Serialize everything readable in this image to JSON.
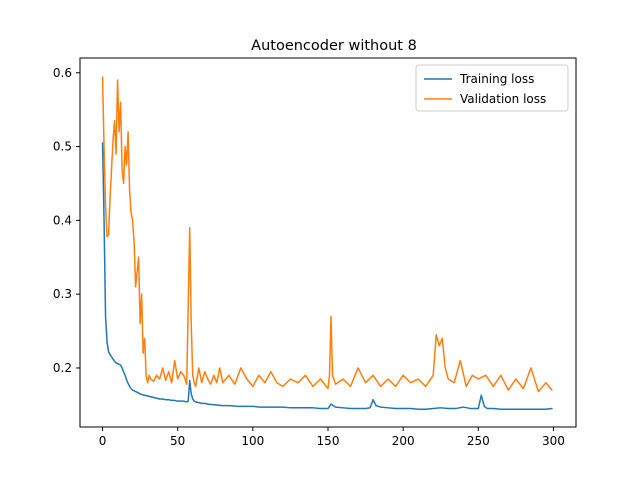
{
  "chart_data": {
    "type": "line",
    "title": "Autoencoder without 8",
    "xlabel": "",
    "ylabel": "",
    "xlim": [
      -15,
      315
    ],
    "ylim": [
      0.12,
      0.62
    ],
    "xticks": [
      0,
      50,
      100,
      150,
      200,
      250,
      300
    ],
    "yticks": [
      0.2,
      0.3,
      0.4,
      0.5,
      0.6
    ],
    "grid": false,
    "legend_position": "top-right",
    "series": [
      {
        "name": "Training loss",
        "color": "#1f77b4",
        "x": [
          0,
          1,
          2,
          3,
          4,
          5,
          6,
          7,
          8,
          9,
          10,
          11,
          12,
          13,
          14,
          15,
          16,
          17,
          18,
          19,
          20,
          22,
          24,
          26,
          28,
          30,
          32,
          34,
          36,
          38,
          40,
          42,
          44,
          46,
          48,
          50,
          52,
          54,
          56,
          57,
          58,
          59,
          60,
          61,
          62,
          64,
          66,
          68,
          70,
          75,
          80,
          85,
          90,
          95,
          100,
          105,
          110,
          115,
          120,
          125,
          130,
          135,
          140,
          145,
          150,
          152,
          155,
          160,
          165,
          170,
          175,
          178,
          180,
          182,
          185,
          190,
          195,
          200,
          205,
          210,
          215,
          220,
          225,
          230,
          235,
          240,
          245,
          250,
          252,
          254,
          256,
          260,
          265,
          270,
          275,
          280,
          285,
          290,
          295,
          299
        ],
        "values": [
          0.505,
          0.4,
          0.27,
          0.235,
          0.222,
          0.218,
          0.215,
          0.212,
          0.209,
          0.207,
          0.206,
          0.205,
          0.204,
          0.2,
          0.195,
          0.19,
          0.184,
          0.179,
          0.175,
          0.172,
          0.17,
          0.168,
          0.166,
          0.164,
          0.163,
          0.162,
          0.161,
          0.16,
          0.159,
          0.158,
          0.158,
          0.157,
          0.157,
          0.156,
          0.156,
          0.155,
          0.155,
          0.155,
          0.154,
          0.155,
          0.183,
          0.165,
          0.158,
          0.155,
          0.154,
          0.153,
          0.152,
          0.152,
          0.151,
          0.15,
          0.149,
          0.149,
          0.148,
          0.148,
          0.148,
          0.147,
          0.147,
          0.147,
          0.147,
          0.146,
          0.146,
          0.146,
          0.146,
          0.145,
          0.145,
          0.151,
          0.147,
          0.146,
          0.145,
          0.145,
          0.145,
          0.146,
          0.157,
          0.149,
          0.147,
          0.146,
          0.145,
          0.145,
          0.145,
          0.144,
          0.144,
          0.145,
          0.146,
          0.145,
          0.145,
          0.147,
          0.145,
          0.145,
          0.163,
          0.148,
          0.145,
          0.145,
          0.144,
          0.144,
          0.144,
          0.144,
          0.144,
          0.144,
          0.144,
          0.145
        ]
      },
      {
        "name": "Validation loss",
        "color": "#ff7f0e",
        "x": [
          0,
          1,
          2,
          3,
          4,
          5,
          6,
          7,
          8,
          9,
          10,
          11,
          12,
          13,
          14,
          15,
          16,
          17,
          18,
          19,
          20,
          21,
          22,
          23,
          24,
          25,
          26,
          27,
          28,
          29,
          30,
          31,
          32,
          34,
          36,
          38,
          40,
          42,
          44,
          46,
          48,
          50,
          52,
          54,
          56,
          58,
          59,
          60,
          61,
          62,
          64,
          66,
          68,
          70,
          72,
          74,
          76,
          78,
          80,
          84,
          88,
          92,
          96,
          100,
          104,
          108,
          112,
          116,
          120,
          125,
          130,
          135,
          140,
          145,
          150,
          151,
          152,
          153,
          155,
          160,
          165,
          170,
          175,
          180,
          185,
          190,
          195,
          200,
          205,
          210,
          215,
          220,
          222,
          224,
          226,
          228,
          230,
          234,
          238,
          242,
          246,
          250,
          255,
          260,
          265,
          270,
          275,
          280,
          285,
          290,
          295,
          299
        ],
        "values": [
          0.594,
          0.5,
          0.42,
          0.378,
          0.38,
          0.43,
          0.47,
          0.51,
          0.535,
          0.49,
          0.59,
          0.52,
          0.56,
          0.47,
          0.45,
          0.5,
          0.475,
          0.52,
          0.44,
          0.41,
          0.4,
          0.37,
          0.31,
          0.33,
          0.35,
          0.26,
          0.3,
          0.22,
          0.24,
          0.19,
          0.18,
          0.19,
          0.185,
          0.182,
          0.19,
          0.185,
          0.2,
          0.183,
          0.195,
          0.18,
          0.21,
          0.185,
          0.195,
          0.19,
          0.178,
          0.39,
          0.26,
          0.19,
          0.18,
          0.175,
          0.2,
          0.18,
          0.195,
          0.185,
          0.178,
          0.19,
          0.18,
          0.2,
          0.18,
          0.19,
          0.178,
          0.2,
          0.185,
          0.175,
          0.19,
          0.18,
          0.195,
          0.18,
          0.175,
          0.185,
          0.18,
          0.19,
          0.175,
          0.185,
          0.172,
          0.19,
          0.27,
          0.19,
          0.178,
          0.185,
          0.175,
          0.2,
          0.18,
          0.19,
          0.175,
          0.185,
          0.175,
          0.19,
          0.18,
          0.185,
          0.175,
          0.19,
          0.245,
          0.23,
          0.24,
          0.2,
          0.185,
          0.18,
          0.21,
          0.175,
          0.19,
          0.185,
          0.19,
          0.175,
          0.19,
          0.17,
          0.185,
          0.172,
          0.2,
          0.168,
          0.18,
          0.17
        ]
      }
    ]
  }
}
